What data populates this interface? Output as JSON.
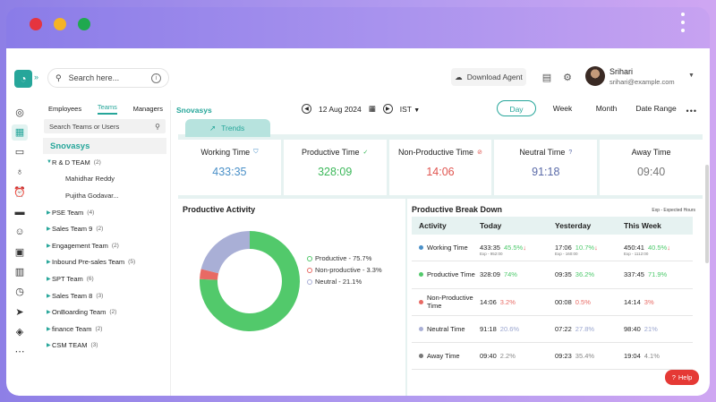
{
  "window": {
    "dots": [
      "#e5343f",
      "#f5b325",
      "#1fa94f"
    ]
  },
  "header": {
    "search_placeholder": "Search here...",
    "download_label": "Download Agent",
    "user": {
      "name": "Srihari",
      "email": "srihari@example.com"
    }
  },
  "teams": {
    "tabs": [
      "Employees",
      "Teams",
      "Managers"
    ],
    "active_tab": "Teams",
    "search_placeholder": "Search Teams or Users",
    "org": "Snovasys",
    "items": [
      {
        "label": "R & D TEAM",
        "count": "(2)",
        "expanded": true
      },
      {
        "label": "Mahidhar Reddy",
        "member": true
      },
      {
        "label": "Pujitha Godavar...",
        "member": true
      },
      {
        "label": "PSE Team",
        "count": "(4)"
      },
      {
        "label": "Sales Team 9",
        "count": "(2)"
      },
      {
        "label": "Engagement Team",
        "count": "(2)"
      },
      {
        "label": "Inbound Pre-sales Team",
        "count": "(5)"
      },
      {
        "label": "SPT Team",
        "count": "(6)"
      },
      {
        "label": "Sales Team 8",
        "count": "(3)"
      },
      {
        "label": "OnBoarding Team",
        "count": "(2)"
      },
      {
        "label": "finance Team",
        "count": "(2)"
      },
      {
        "label": "CSM TEAM",
        "count": "(3)"
      }
    ]
  },
  "main": {
    "org_title": "Snovasys",
    "date": "12 Aug 2024",
    "timezone": "IST",
    "ranges": [
      "Day",
      "Week",
      "Month",
      "Date Range"
    ],
    "active_range": "Day",
    "trends_tab": "Trends"
  },
  "cards": [
    {
      "label": "Working Time",
      "value": "433:35",
      "color": "#4a90c8",
      "icon": "shield-icon"
    },
    {
      "label": "Productive Time",
      "value": "328:09",
      "color": "#3cb85a",
      "icon": "check-circle-icon"
    },
    {
      "label": "Non-Productive Time",
      "value": "14:06",
      "color": "#e05550",
      "icon": "alert-circle-icon"
    },
    {
      "label": "Neutral Time",
      "value": "91:18",
      "color": "#5a6aa8",
      "icon": "question-circle-icon"
    },
    {
      "label": "Away Time",
      "value": "09:40",
      "color": "#777777",
      "icon": ""
    }
  ],
  "activity": {
    "title": "Productive Activity",
    "chart_data": {
      "type": "pie",
      "categories": [
        "Productive",
        "Non-productive",
        "Neutral"
      ],
      "values": [
        75.7,
        3.3,
        21.1
      ],
      "colors": [
        "#52c96b",
        "#e86a64",
        "#a9afd6"
      ],
      "legend": [
        "Productive - 75.7%",
        "Non-productive - 3.3%",
        "Neutral - 21.1%"
      ]
    }
  },
  "breakdown": {
    "title": "Productive Break Down",
    "legend_note": "Exp - Expected Hours",
    "columns": [
      "Activity",
      "Today",
      "Yesterday",
      "This Week"
    ],
    "rows": [
      {
        "activity": "Working Time",
        "dot": "#4a90c8",
        "today": "433:35",
        "today_pct": "45.5%",
        "today_exp": "Exp - 952:00",
        "today_arrow": "↓",
        "yest": "17:06",
        "yest_pct": "10.7%",
        "yest_exp": "Exp - 160:00",
        "yest_arrow": "↓",
        "week": "450:41",
        "week_pct": "40.5%",
        "week_exp": "Exp - 1112:00",
        "week_arrow": "↓",
        "pct_class": "pct-g"
      },
      {
        "activity": "Productive Time",
        "dot": "#52c96b",
        "today": "328:09",
        "today_pct": "74%",
        "yest": "09:35",
        "yest_pct": "36.2%",
        "week": "337:45",
        "week_pct": "71.9%",
        "pct_class": "pct-g"
      },
      {
        "activity": "Non-Productive Time",
        "dot": "#e86a64",
        "today": "14:06",
        "today_pct": "3.2%",
        "yest": "00:08",
        "yest_pct": "0.5%",
        "week": "14:14",
        "week_pct": "3%",
        "pct_class": "pct-r"
      },
      {
        "activity": "Neutral Time",
        "dot": "#a9afd6",
        "today": "91:18",
        "today_pct": "20.6%",
        "yest": "07:22",
        "yest_pct": "27.8%",
        "week": "98:40",
        "week_pct": "21%",
        "pct_class": "pct-b"
      },
      {
        "activity": "Away Time",
        "dot": "#777777",
        "today": "09:40",
        "today_pct": "2.2%",
        "yest": "09:23",
        "yest_pct": "35.4%",
        "week": "19:04",
        "week_pct": "4.1%",
        "pct_class": "pct-n"
      }
    ]
  },
  "help_label": "Help"
}
